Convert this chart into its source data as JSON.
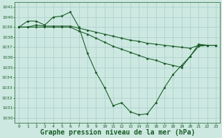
{
  "title": "Graphe pression niveau de la mer (hPa)",
  "background_color": "#cce8e0",
  "grid_color": "#aacccc",
  "line_color": "#1a5c28",
  "ylim": [
    1029.5,
    1041.5
  ],
  "xlim": [
    -0.5,
    23.5
  ],
  "yticks": [
    1030,
    1031,
    1032,
    1033,
    1034,
    1035,
    1036,
    1037,
    1038,
    1039,
    1040,
    1041
  ],
  "xticks": [
    0,
    1,
    2,
    3,
    4,
    5,
    6,
    7,
    8,
    9,
    10,
    11,
    12,
    13,
    14,
    15,
    16,
    17,
    18,
    19,
    20,
    21,
    22,
    23
  ],
  "line1_x": [
    0,
    1,
    2,
    3,
    4,
    5,
    6,
    7,
    8,
    9,
    10,
    11,
    12,
    13,
    14,
    15,
    16,
    17,
    18,
    19,
    20,
    21,
    22,
    23
  ],
  "line1_y": [
    1039.0,
    1039.6,
    1039.6,
    1039.2,
    1040.0,
    1040.1,
    1040.5,
    1039.0,
    1036.4,
    1034.5,
    1033.0,
    1031.2,
    1031.5,
    1030.6,
    1030.3,
    1030.4,
    1031.5,
    1033.0,
    1034.3,
    1035.2,
    1036.1,
    1037.3,
    1037.2,
    1037.2
  ],
  "line2_x": [
    0,
    1,
    2,
    3,
    4,
    5,
    6,
    7,
    8,
    9,
    10,
    11,
    12,
    13,
    14,
    15,
    16,
    17,
    18,
    19,
    20,
    21,
    22,
    23
  ],
  "line2_y": [
    1039.0,
    1039.0,
    1039.2,
    1039.1,
    1039.1,
    1039.1,
    1039.1,
    1038.9,
    1038.7,
    1038.5,
    1038.3,
    1038.1,
    1037.9,
    1037.7,
    1037.6,
    1037.4,
    1037.3,
    1037.2,
    1037.1,
    1037.0,
    1036.9,
    1037.2,
    1037.2,
    1037.2
  ],
  "line3_x": [
    0,
    1,
    2,
    3,
    4,
    5,
    6,
    7,
    8,
    9,
    10,
    11,
    12,
    13,
    14,
    15,
    16,
    17,
    18,
    19,
    20,
    21,
    22,
    23
  ],
  "line3_y": [
    1039.0,
    1039.0,
    1039.0,
    1039.0,
    1039.0,
    1039.0,
    1039.0,
    1038.6,
    1038.3,
    1037.9,
    1037.5,
    1037.1,
    1036.8,
    1036.5,
    1036.2,
    1035.9,
    1035.7,
    1035.4,
    1035.2,
    1035.0,
    1036.1,
    1037.1,
    1037.2,
    1037.2
  ],
  "marker": "D",
  "marker_size": 1.5,
  "linewidth": 0.8,
  "ylabel_fontsize": 5,
  "xlabel_fontsize": 5,
  "title_fontsize": 7
}
